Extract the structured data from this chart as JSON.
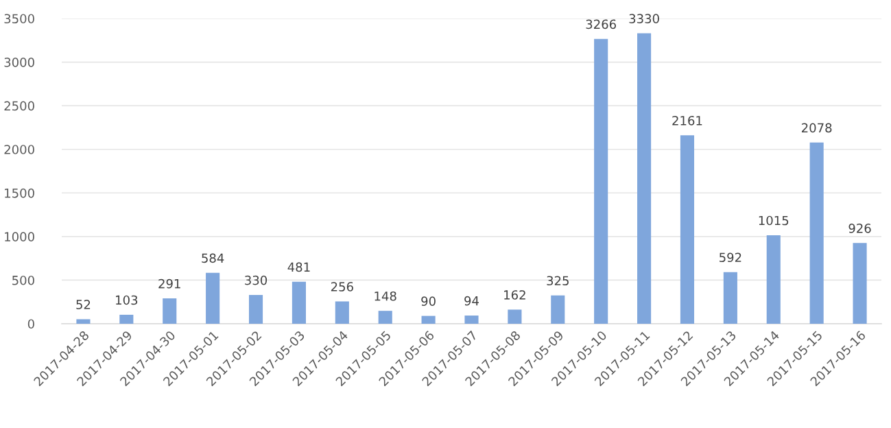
{
  "chart_data": {
    "type": "bar",
    "categories": [
      "2017-04-28",
      "2017-04-29",
      "2017-04-30",
      "2017-05-01",
      "2017-05-02",
      "2017-05-03",
      "2017-05-04",
      "2017-05-05",
      "2017-05-06",
      "2017-05-07",
      "2017-05-08",
      "2017-05-09",
      "2017-05-10",
      "2017-05-11",
      "2017-05-12",
      "2017-05-13",
      "2017-05-14",
      "2017-05-15",
      "2017-05-16"
    ],
    "values": [
      52,
      103,
      291,
      584,
      330,
      481,
      256,
      148,
      90,
      94,
      162,
      325,
      3266,
      3330,
      2161,
      592,
      1015,
      2078,
      926
    ],
    "color": "#7fa6dc",
    "ylim": [
      0,
      3500
    ],
    "yticks": [
      0,
      500,
      1000,
      1500,
      2000,
      2500,
      3000,
      3500
    ],
    "grid": "y",
    "data_labels": true,
    "legend": false
  }
}
